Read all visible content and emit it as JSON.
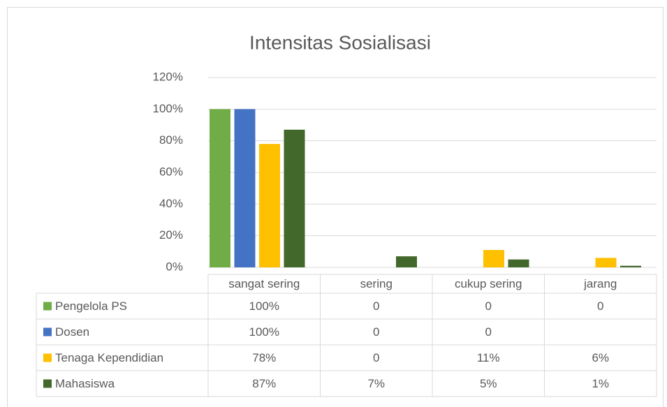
{
  "chart_data": {
    "type": "bar",
    "title": "Intensitas Sosialisasi",
    "categories": [
      "sangat sering",
      "sering",
      "cukup sering",
      "jarang"
    ],
    "series": [
      {
        "name": "Pengelola PS",
        "color": "#70ad47",
        "values": [
          100,
          0,
          0,
          0
        ],
        "value_labels": [
          "100%",
          "0",
          "0",
          "0"
        ]
      },
      {
        "name": "Dosen",
        "color": "#4472c4",
        "values": [
          100,
          0,
          0,
          null
        ],
        "value_labels": [
          "100%",
          "0",
          "0",
          null
        ]
      },
      {
        "name": "Tenaga Kependidian",
        "color": "#ffc000",
        "values": [
          78,
          0,
          11,
          6
        ],
        "value_labels": [
          "78%",
          "0",
          "11%",
          "6%"
        ]
      },
      {
        "name": "Mahasiswa",
        "color": "#43682b",
        "values": [
          87,
          7,
          5,
          1
        ],
        "value_labels": [
          "87%",
          "7%",
          "5%",
          "1%"
        ]
      }
    ],
    "ylim": [
      0,
      120
    ],
    "yticks": [
      {
        "value": 0,
        "label": "0%"
      },
      {
        "value": 20,
        "label": "20%"
      },
      {
        "value": 40,
        "label": "40%"
      },
      {
        "value": 60,
        "label": "60%"
      },
      {
        "value": 80,
        "label": "80%"
      },
      {
        "value": 100,
        "label": "100%"
      },
      {
        "value": 120,
        "label": "120%"
      }
    ],
    "grid": true,
    "legend": "table"
  }
}
